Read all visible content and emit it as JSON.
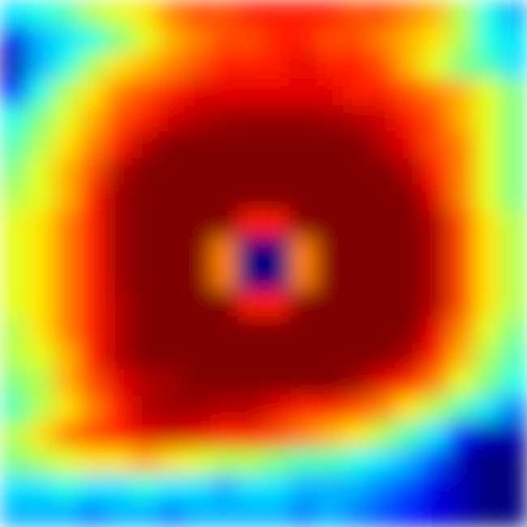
{
  "chart_data": {
    "type": "heatmap",
    "tick_labels": false,
    "color_range": [
      0,
      1
    ],
    "cells": [
      [
        0.35,
        0.4,
        0.45,
        0.55,
        0.6,
        0.65,
        0.75,
        0.8,
        0.8,
        0.85,
        0.85,
        0.85,
        0.85,
        0.8,
        0.8,
        0.75,
        0.7,
        0.55,
        0.4,
        0.3
      ],
      [
        0.1,
        0.3,
        0.35,
        0.4,
        0.5,
        0.6,
        0.7,
        0.75,
        0.8,
        0.8,
        0.85,
        0.85,
        0.8,
        0.8,
        0.75,
        0.7,
        0.65,
        0.55,
        0.4,
        0.35
      ],
      [
        0.05,
        0.3,
        0.4,
        0.55,
        0.65,
        0.7,
        0.75,
        0.8,
        0.85,
        0.85,
        0.85,
        0.9,
        0.85,
        0.85,
        0.8,
        0.7,
        0.6,
        0.5,
        0.45,
        0.35
      ],
      [
        0.15,
        0.4,
        0.55,
        0.65,
        0.75,
        0.8,
        0.85,
        0.9,
        0.9,
        0.9,
        0.9,
        0.9,
        0.9,
        0.85,
        0.85,
        0.8,
        0.75,
        0.7,
        0.6,
        0.5
      ],
      [
        0.4,
        0.5,
        0.6,
        0.7,
        0.8,
        0.85,
        0.92,
        0.95,
        0.97,
        0.98,
        0.98,
        0.98,
        0.97,
        0.95,
        0.92,
        0.85,
        0.8,
        0.7,
        0.6,
        0.5
      ],
      [
        0.45,
        0.55,
        0.65,
        0.75,
        0.85,
        0.95,
        1,
        1,
        1,
        1,
        1,
        1,
        1,
        1,
        0.95,
        0.9,
        0.8,
        0.75,
        0.6,
        0.5
      ],
      [
        0.5,
        0.6,
        0.7,
        0.8,
        0.95,
        1,
        1,
        1,
        1,
        1,
        1,
        1,
        1,
        1,
        1,
        0.95,
        0.85,
        0.75,
        0.6,
        0.5
      ],
      [
        0.55,
        0.6,
        0.7,
        0.85,
        0.97,
        1,
        1,
        1,
        1,
        1,
        1,
        1,
        1,
        1,
        1,
        1,
        0.9,
        0.75,
        0.6,
        0.5
      ],
      [
        0.6,
        0.65,
        0.75,
        0.85,
        0.97,
        1,
        1,
        1,
        1,
        0.85,
        0.85,
        1,
        1,
        1,
        1,
        1,
        0.95,
        0.8,
        0.65,
        0.55
      ],
      [
        0.6,
        0.65,
        0.75,
        0.85,
        0.97,
        1,
        1,
        1,
        0.75,
        0,
        0,
        0.75,
        1,
        1,
        1,
        1,
        0.95,
        0.8,
        0.65,
        0.55
      ],
      [
        0.6,
        0.65,
        0.75,
        0.85,
        0.97,
        1,
        1,
        1,
        0.75,
        0,
        0,
        0.75,
        1,
        1,
        1,
        1,
        0.95,
        0.8,
        0.65,
        0.55
      ],
      [
        0.6,
        0.65,
        0.75,
        0.85,
        0.95,
        1,
        1,
        1,
        1,
        0.85,
        0.85,
        1,
        1,
        1,
        1,
        1,
        0.95,
        0.8,
        0.65,
        0.55
      ],
      [
        0.55,
        0.65,
        0.75,
        0.85,
        0.95,
        1,
        1,
        1,
        1,
        1,
        1,
        1,
        1,
        1,
        1,
        1,
        0.9,
        0.75,
        0.6,
        0.5
      ],
      [
        0.55,
        0.6,
        0.7,
        0.85,
        0.95,
        1,
        1,
        1,
        1,
        1,
        1,
        1,
        1,
        1,
        1,
        0.95,
        0.85,
        0.7,
        0.55,
        0.45
      ],
      [
        0.5,
        0.55,
        0.7,
        0.8,
        0.9,
        0.95,
        0.97,
        1,
        1,
        1,
        1,
        1,
        1,
        0.97,
        0.9,
        0.85,
        0.75,
        0.6,
        0.5,
        0.4
      ],
      [
        0.45,
        0.55,
        0.65,
        0.75,
        0.85,
        0.95,
        0.97,
        0.97,
        0.95,
        0.95,
        0.9,
        0.85,
        0.85,
        0.8,
        0.75,
        0.65,
        0.55,
        0.45,
        0.35,
        0.25
      ],
      [
        0.55,
        0.65,
        0.75,
        0.8,
        0.85,
        0.9,
        0.92,
        0.9,
        0.85,
        0.85,
        0.8,
        0.75,
        0.7,
        0.65,
        0.55,
        0.45,
        0.35,
        0.15,
        0.05,
        0.05
      ],
      [
        0.5,
        0.55,
        0.6,
        0.65,
        0.65,
        0.7,
        0.65,
        0.6,
        0.55,
        0.55,
        0.5,
        0.45,
        0.45,
        0.4,
        0.35,
        0.3,
        0.2,
        0.05,
        0,
        0
      ],
      [
        0.35,
        0.35,
        0.4,
        0.35,
        0.35,
        0.4,
        0.35,
        0.35,
        0.3,
        0.35,
        0.35,
        0.3,
        0.3,
        0.3,
        0.25,
        0.2,
        0.1,
        0.05,
        0,
        0
      ],
      [
        0.3,
        0.3,
        0.3,
        0.25,
        0.3,
        0.3,
        0.25,
        0.3,
        0.3,
        0.3,
        0.3,
        0.25,
        0.3,
        0.25,
        0.2,
        0.15,
        0.1,
        0.05,
        0,
        0
      ]
    ]
  }
}
